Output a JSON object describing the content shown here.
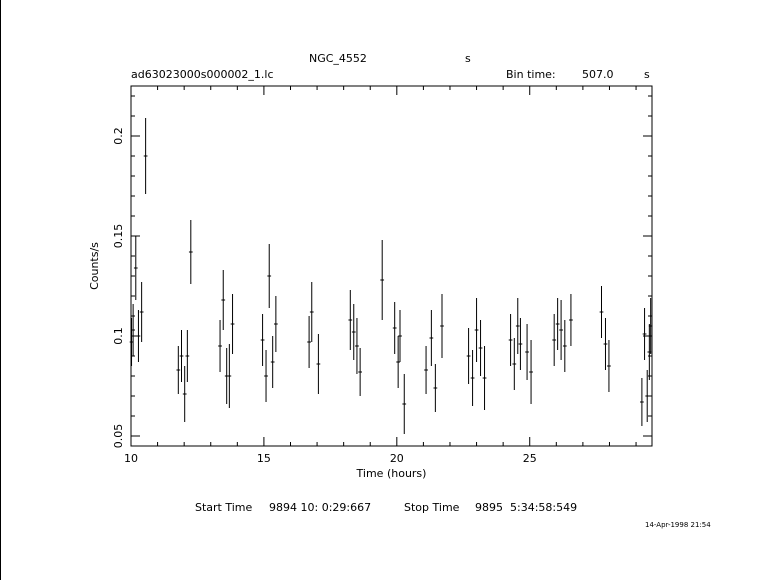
{
  "header": {
    "object": "NGC_4552",
    "object_unit": "s",
    "filename": "ad63023000s000002_1.lc",
    "bin_label": "Bin time:",
    "bin_value": "507.0",
    "bin_unit": "s"
  },
  "footer": {
    "start_label": "Start Time",
    "start_value": "9894 10: 0:29:667",
    "stop_label": "Stop Time",
    "stop_value": "9895  5:34:58:549",
    "timestamp": "14-Apr-1998 21:54"
  },
  "chart_data": {
    "type": "scatter",
    "xlabel": "Time (hours)",
    "ylabel": "Counts/s",
    "xlim": [
      10,
      29.6
    ],
    "ylim": [
      0.045,
      0.225
    ],
    "x_ticks": [
      "10",
      "15",
      "20",
      "25"
    ],
    "y_ticks": [
      "0.05",
      "0.1",
      "0.15",
      "0.2"
    ],
    "points": [
      {
        "x": 10.02,
        "y": 0.097,
        "err": 0.012
      },
      {
        "x": 10.08,
        "y": 0.103,
        "err": 0.013
      },
      {
        "x": 10.18,
        "y": 0.134,
        "err": 0.016
      },
      {
        "x": 10.28,
        "y": 0.1,
        "err": 0.013
      },
      {
        "x": 10.4,
        "y": 0.112,
        "err": 0.015
      },
      {
        "x": 10.55,
        "y": 0.19,
        "err": 0.019
      },
      {
        "x": 11.78,
        "y": 0.083,
        "err": 0.012
      },
      {
        "x": 11.9,
        "y": 0.09,
        "err": 0.013
      },
      {
        "x": 12.02,
        "y": 0.071,
        "err": 0.014
      },
      {
        "x": 12.12,
        "y": 0.09,
        "err": 0.013
      },
      {
        "x": 12.25,
        "y": 0.142,
        "err": 0.016
      },
      {
        "x": 13.35,
        "y": 0.095,
        "err": 0.013
      },
      {
        "x": 13.47,
        "y": 0.118,
        "err": 0.015
      },
      {
        "x": 13.6,
        "y": 0.08,
        "err": 0.014
      },
      {
        "x": 13.7,
        "y": 0.08,
        "err": 0.016
      },
      {
        "x": 13.82,
        "y": 0.106,
        "err": 0.015
      },
      {
        "x": 14.95,
        "y": 0.098,
        "err": 0.013
      },
      {
        "x": 15.08,
        "y": 0.08,
        "err": 0.013
      },
      {
        "x": 15.2,
        "y": 0.13,
        "err": 0.016
      },
      {
        "x": 15.33,
        "y": 0.087,
        "err": 0.013
      },
      {
        "x": 15.45,
        "y": 0.106,
        "err": 0.014
      },
      {
        "x": 16.7,
        "y": 0.097,
        "err": 0.013
      },
      {
        "x": 16.8,
        "y": 0.112,
        "err": 0.015
      },
      {
        "x": 17.05,
        "y": 0.086,
        "err": 0.015
      },
      {
        "x": 18.25,
        "y": 0.108,
        "err": 0.015
      },
      {
        "x": 18.38,
        "y": 0.102,
        "err": 0.014
      },
      {
        "x": 18.5,
        "y": 0.095,
        "err": 0.014
      },
      {
        "x": 18.62,
        "y": 0.082,
        "err": 0.012
      },
      {
        "x": 19.45,
        "y": 0.128,
        "err": 0.02
      },
      {
        "x": 19.92,
        "y": 0.104,
        "err": 0.013
      },
      {
        "x": 20.05,
        "y": 0.087,
        "err": 0.013
      },
      {
        "x": 20.12,
        "y": 0.1,
        "err": 0.013
      },
      {
        "x": 20.28,
        "y": 0.066,
        "err": 0.015
      },
      {
        "x": 21.1,
        "y": 0.083,
        "err": 0.012
      },
      {
        "x": 21.3,
        "y": 0.099,
        "err": 0.014
      },
      {
        "x": 21.45,
        "y": 0.074,
        "err": 0.012
      },
      {
        "x": 21.7,
        "y": 0.105,
        "err": 0.016
      },
      {
        "x": 22.7,
        "y": 0.09,
        "err": 0.014
      },
      {
        "x": 22.85,
        "y": 0.079,
        "err": 0.014
      },
      {
        "x": 23.0,
        "y": 0.103,
        "err": 0.016
      },
      {
        "x": 23.15,
        "y": 0.094,
        "err": 0.014
      },
      {
        "x": 23.3,
        "y": 0.079,
        "err": 0.016
      },
      {
        "x": 24.28,
        "y": 0.098,
        "err": 0.013
      },
      {
        "x": 24.42,
        "y": 0.086,
        "err": 0.013
      },
      {
        "x": 24.55,
        "y": 0.105,
        "err": 0.014
      },
      {
        "x": 24.65,
        "y": 0.096,
        "err": 0.013
      },
      {
        "x": 24.9,
        "y": 0.092,
        "err": 0.014
      },
      {
        "x": 25.05,
        "y": 0.082,
        "err": 0.016
      },
      {
        "x": 25.92,
        "y": 0.098,
        "err": 0.013
      },
      {
        "x": 26.05,
        "y": 0.106,
        "err": 0.013
      },
      {
        "x": 26.18,
        "y": 0.103,
        "err": 0.015
      },
      {
        "x": 26.32,
        "y": 0.095,
        "err": 0.013
      },
      {
        "x": 26.55,
        "y": 0.108,
        "err": 0.013
      },
      {
        "x": 27.7,
        "y": 0.112,
        "err": 0.013
      },
      {
        "x": 27.85,
        "y": 0.096,
        "err": 0.013
      },
      {
        "x": 27.98,
        "y": 0.085,
        "err": 0.013
      },
      {
        "x": 29.22,
        "y": 0.067,
        "err": 0.012
      },
      {
        "x": 29.32,
        "y": 0.101,
        "err": 0.013
      },
      {
        "x": 29.42,
        "y": 0.07,
        "err": 0.013
      },
      {
        "x": 29.5,
        "y": 0.092,
        "err": 0.014
      },
      {
        "x": 29.55,
        "y": 0.105,
        "err": 0.014
      }
    ]
  }
}
